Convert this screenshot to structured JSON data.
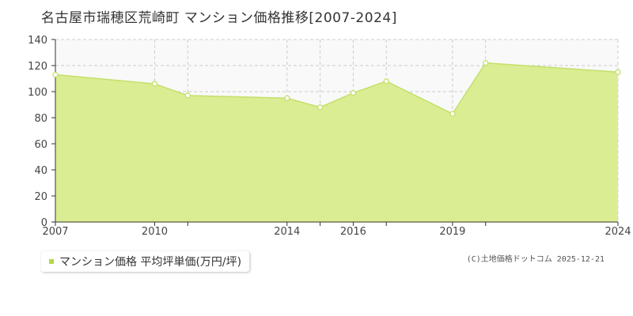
{
  "title": "名古屋市瑞穂区荒崎町 マンション価格推移[2007-2024]",
  "legend": {
    "label": "マンション価格 平均坪単価(万円/坪)"
  },
  "credit": "(C)土地価格ドットコム 2025-12-21",
  "colors": {
    "fill": "#dbed92",
    "line": "#c3e06a",
    "marker_fill": "#ffffff",
    "grid": "#cccccc",
    "axis": "#333333",
    "legend_swatch": "#b5d84a",
    "plot_background": "#f9f9f9"
  },
  "chart_data": {
    "type": "area",
    "x": [
      2007,
      2010,
      2011,
      2014,
      2015,
      2016,
      2017,
      2019,
      2020,
      2024
    ],
    "series": [
      {
        "name": "マンション価格 平均坪単価(万円/坪)",
        "values": [
          113,
          106,
          97,
          95,
          88,
          99,
          108,
          83,
          122,
          115
        ]
      }
    ],
    "x_ticks": [
      2007,
      2010,
      2014,
      2016,
      2019,
      2024
    ],
    "y_ticks": [
      0,
      20,
      40,
      60,
      80,
      100,
      120,
      140
    ],
    "ylim": [
      0,
      140
    ],
    "grid": true,
    "markers": true
  }
}
